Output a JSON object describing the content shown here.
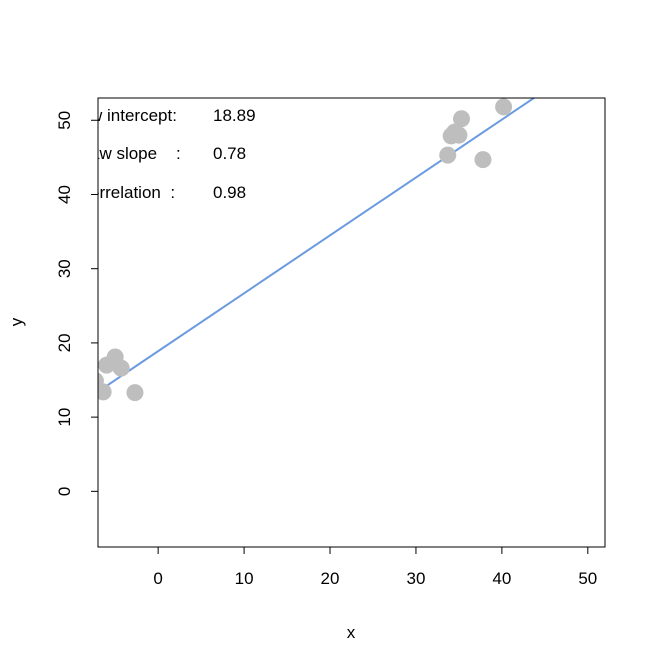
{
  "chart_data": {
    "type": "scatter",
    "title": "",
    "xlabel": "x",
    "ylabel": "y",
    "xlim": [
      -7,
      52
    ],
    "ylim": [
      -7.5,
      53
    ],
    "xticks": [
      0,
      10,
      20,
      30,
      40,
      50
    ],
    "yticks": [
      0,
      10,
      20,
      30,
      40,
      50
    ],
    "xtick_labels": [
      "0",
      "10",
      "20",
      "30",
      "40",
      "50"
    ],
    "ytick_labels": [
      "0",
      "10",
      "20",
      "30",
      "40",
      "50"
    ],
    "grid": false,
    "point_color": "#bebebe",
    "line_color": "#6a9ae0",
    "points": [
      {
        "x": -7.3,
        "y": 14.9
      },
      {
        "x": -6.4,
        "y": 13.4
      },
      {
        "x": -6.0,
        "y": 17.0
      },
      {
        "x": -5.0,
        "y": 18.1
      },
      {
        "x": -4.3,
        "y": 16.6
      },
      {
        "x": -2.7,
        "y": 13.3
      },
      {
        "x": 33.7,
        "y": 45.3
      },
      {
        "x": 34.1,
        "y": 47.9
      },
      {
        "x": 34.5,
        "y": 48.4
      },
      {
        "x": 35.0,
        "y": 48.0
      },
      {
        "x": 35.3,
        "y": 50.2
      },
      {
        "x": 37.8,
        "y": 44.7
      },
      {
        "x": 40.2,
        "y": 51.8
      }
    ],
    "regression_line": {
      "intercept": 18.89,
      "slope": 0.78
    },
    "annotations": [
      {
        "label": "w intercept:",
        "value": "18.89"
      },
      {
        "label": "aw slope    :",
        "value": "0.78"
      },
      {
        "label": "orrelation  :",
        "value": "0.98"
      }
    ]
  }
}
